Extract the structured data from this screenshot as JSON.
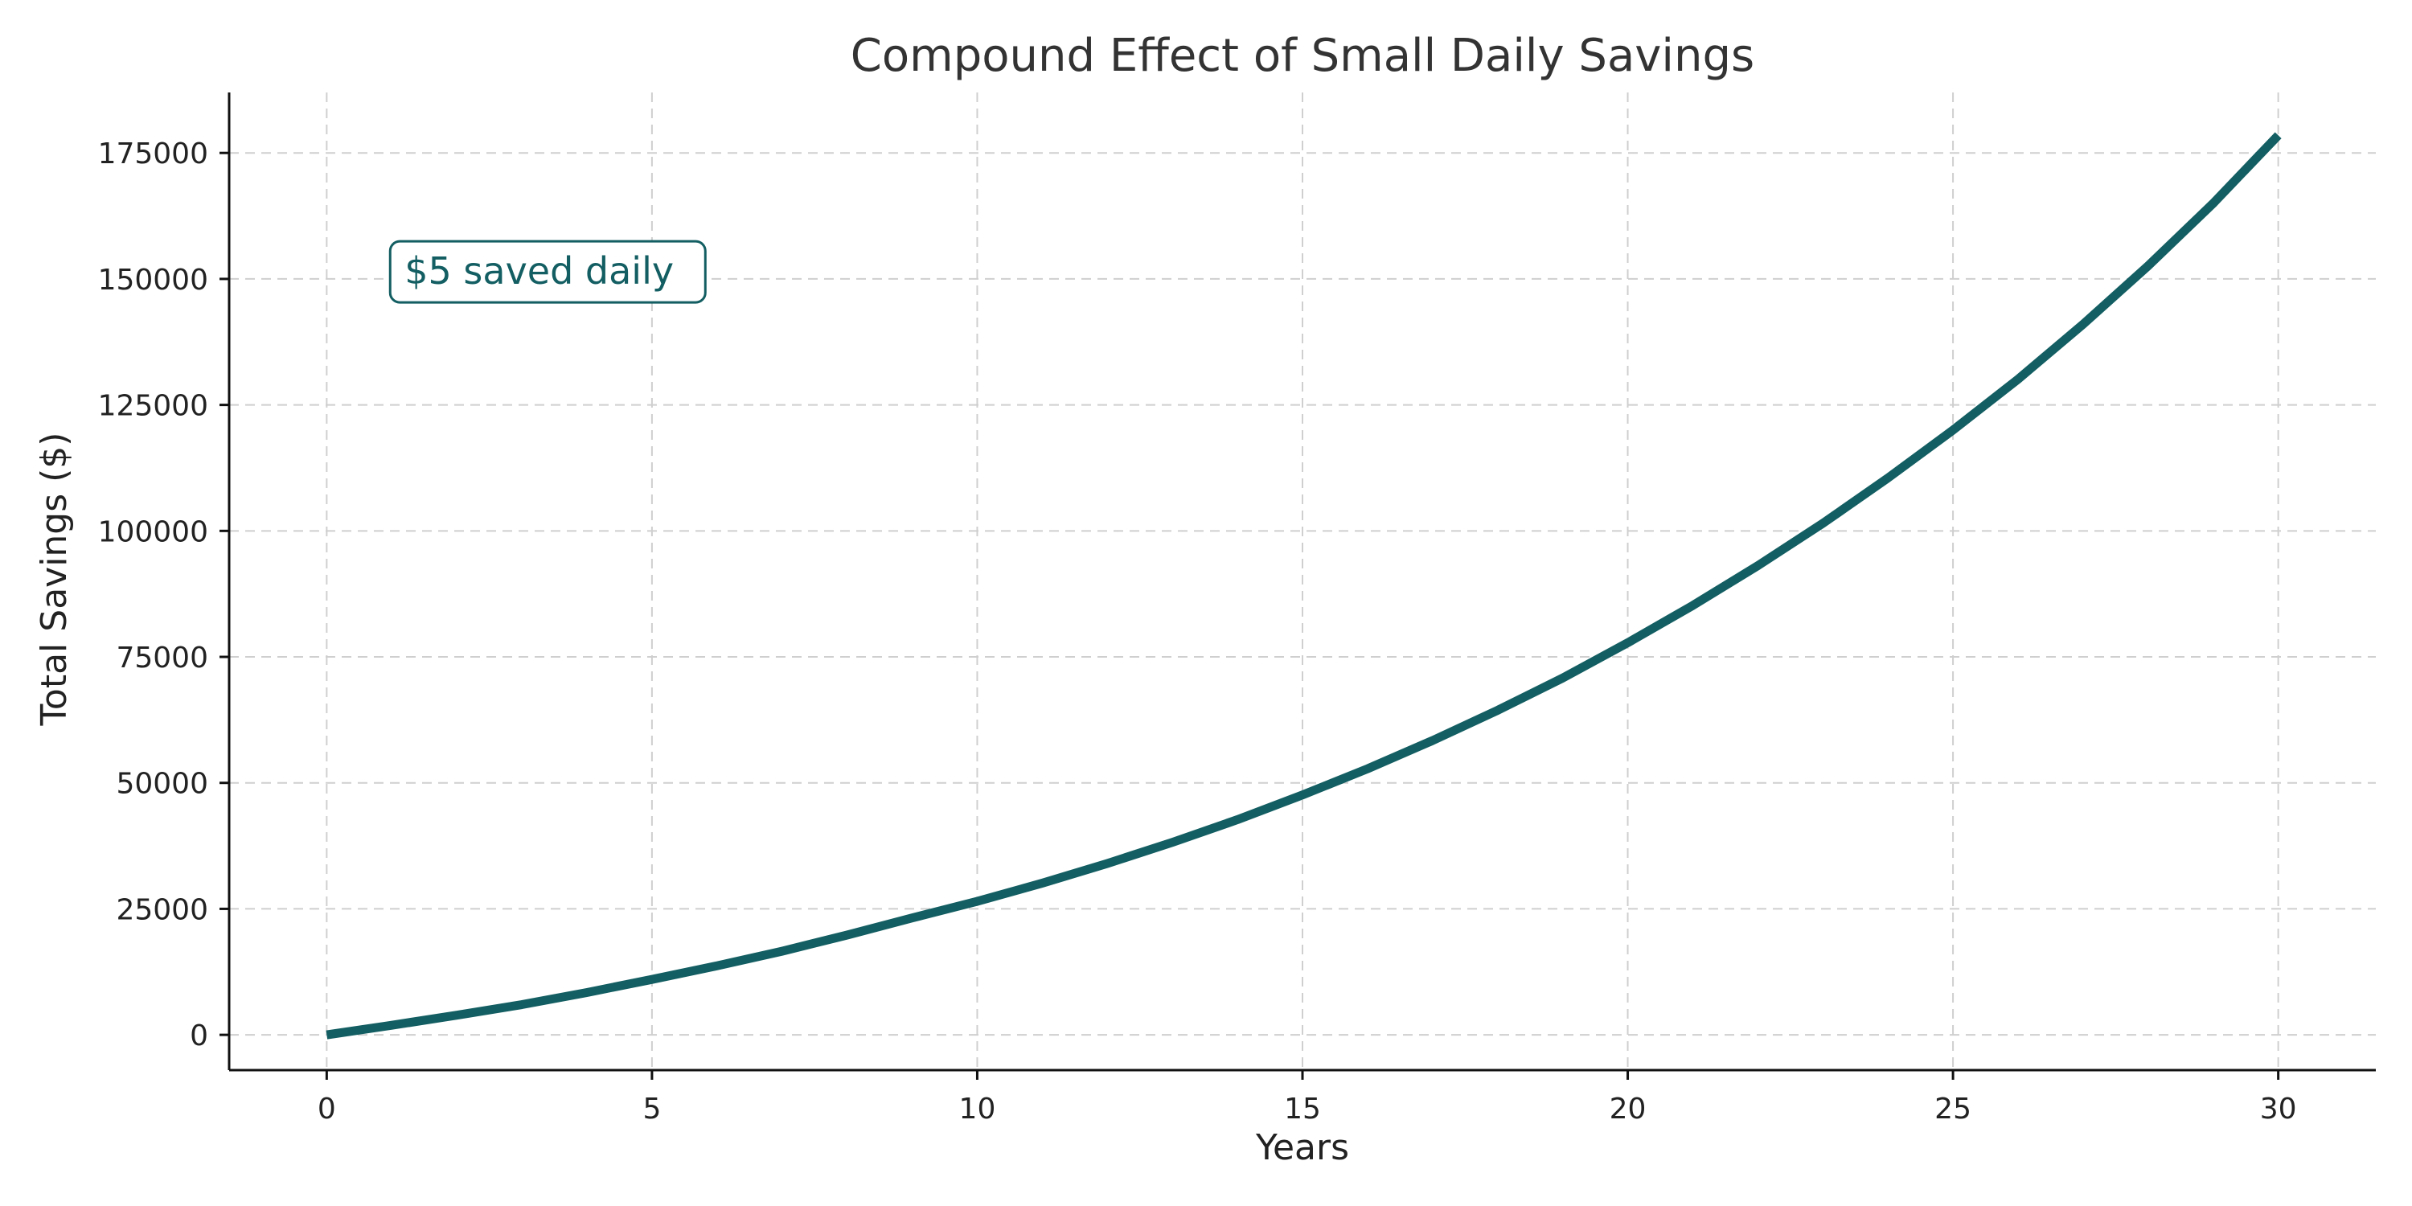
{
  "chart_data": {
    "type": "line",
    "title": "Compound Effect of Small Daily Savings",
    "xlabel": "Years",
    "ylabel": "Total Savings ($)",
    "xlim": [
      -1.5,
      31.5
    ],
    "ylim": [
      -7000,
      187000
    ],
    "xticks": [
      0,
      5,
      10,
      15,
      20,
      25,
      30
    ],
    "yticks": [
      0,
      25000,
      50000,
      75000,
      100000,
      125000,
      150000,
      175000
    ],
    "xtick_labels": [
      "0",
      "5",
      "10",
      "15",
      "20",
      "25",
      "30"
    ],
    "ytick_labels": [
      "0",
      "25000",
      "50000",
      "75000",
      "100000",
      "125000",
      "150000",
      "175000"
    ],
    "grid": true,
    "line_color": "#135e62",
    "series": [
      {
        "x": [
          0,
          1,
          2,
          3,
          4,
          5,
          6,
          7,
          8,
          9,
          10,
          11,
          12,
          13,
          14,
          15,
          16,
          17,
          18,
          19,
          20,
          21,
          22,
          23,
          24,
          25,
          26,
          27,
          28,
          29,
          30
        ],
        "values": [
          0,
          1900,
          3900,
          6000,
          8400,
          11000,
          13700,
          16600,
          19800,
          23200,
          26500,
          30100,
          34000,
          38200,
          42700,
          47600,
          52800,
          58400,
          64400,
          70800,
          77800,
          85200,
          93100,
          101500,
          110500,
          120000,
          130100,
          141000,
          152600,
          165000,
          178500
        ]
      }
    ],
    "annotation": {
      "text": "$5 saved daily",
      "x": 1,
      "y": 153000,
      "color": "#135e62"
    }
  }
}
